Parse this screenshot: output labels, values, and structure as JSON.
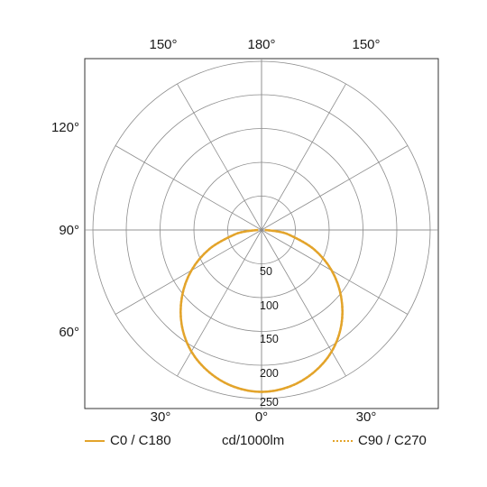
{
  "chart_data": {
    "type": "polar",
    "unit": "cd/1000lm",
    "angle_labels": {
      "top": [
        "150°",
        "180°",
        "150°"
      ],
      "left": [
        "120°",
        "90°",
        "60°"
      ],
      "bottom": [
        "30°",
        "0°",
        "30°"
      ]
    },
    "radial_ticks": [
      "50",
      "100",
      "150",
      "200",
      "250"
    ],
    "r_max": 250,
    "series": [
      {
        "name": "C0 / C180",
        "style": "solid",
        "color": "#E3A42B",
        "angles_deg": [
          0,
          10,
          20,
          30,
          40,
          50,
          60,
          70,
          80,
          85,
          90
        ],
        "values": [
          240,
          236,
          225,
          208,
          184,
          154,
          120,
          82,
          42,
          22,
          5
        ]
      },
      {
        "name": "C90 / C270",
        "style": "dotted",
        "color": "#E3A42B",
        "angles_deg": [
          0,
          10,
          20,
          30,
          40,
          50,
          60,
          70,
          80,
          85,
          90
        ],
        "values": [
          240,
          236,
          225,
          208,
          184,
          154,
          120,
          82,
          42,
          22,
          5
        ]
      }
    ],
    "grid": true,
    "legend_position": "bottom"
  },
  "colors": {
    "grid": "#8c8c8c",
    "frame": "#333333",
    "curve": "#E3A42B"
  }
}
